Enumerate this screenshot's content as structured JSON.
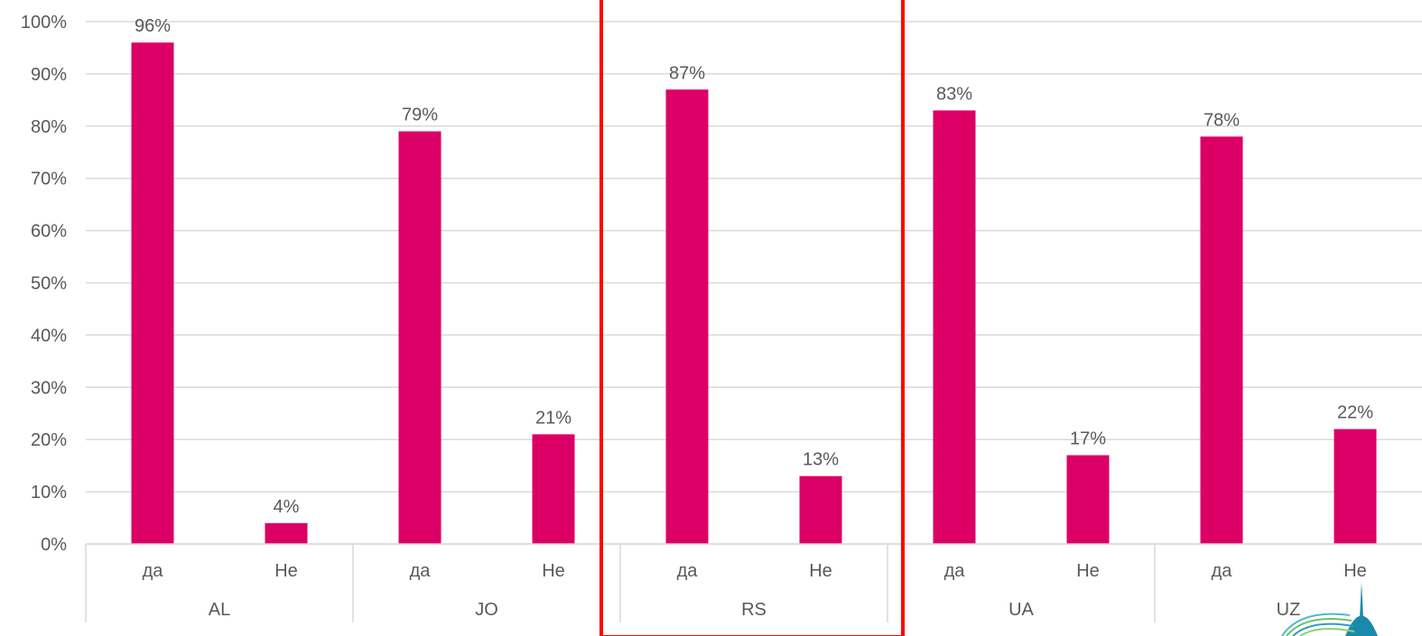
{
  "chart_data": {
    "type": "bar",
    "groups": [
      {
        "label": "AL",
        "bars": [
          {
            "category": "да",
            "value": 96,
            "value_label": "96%"
          },
          {
            "category": "Не",
            "value": 4,
            "value_label": "4%"
          }
        ]
      },
      {
        "label": "JO",
        "bars": [
          {
            "category": "да",
            "value": 79,
            "value_label": "79%"
          },
          {
            "category": "Не",
            "value": 21,
            "value_label": "21%"
          }
        ]
      },
      {
        "label": "RS",
        "bars": [
          {
            "category": "да",
            "value": 87,
            "value_label": "87%"
          },
          {
            "category": "Не",
            "value": 13,
            "value_label": "13%"
          }
        ]
      },
      {
        "label": "UA",
        "bars": [
          {
            "category": "да",
            "value": 83,
            "value_label": "83%"
          },
          {
            "category": "Не",
            "value": 17,
            "value_label": "17%"
          }
        ]
      },
      {
        "label": "UZ",
        "bars": [
          {
            "category": "да",
            "value": 78,
            "value_label": "78%"
          },
          {
            "category": "Не",
            "value": 22,
            "value_label": "22%"
          }
        ]
      }
    ],
    "y_ticks": [
      "0%",
      "10%",
      "20%",
      "30%",
      "40%",
      "50%",
      "60%",
      "70%",
      "80%",
      "90%",
      "100%"
    ],
    "ylim": [
      0,
      100
    ],
    "grid": true,
    "highlighted_group": "RS",
    "colors": {
      "bar": "#dc0066",
      "grid": "#d9d9d9",
      "highlight_box": "#ff0000",
      "text": "#595959"
    }
  },
  "logo": {
    "name": "turin-mole-logo"
  }
}
